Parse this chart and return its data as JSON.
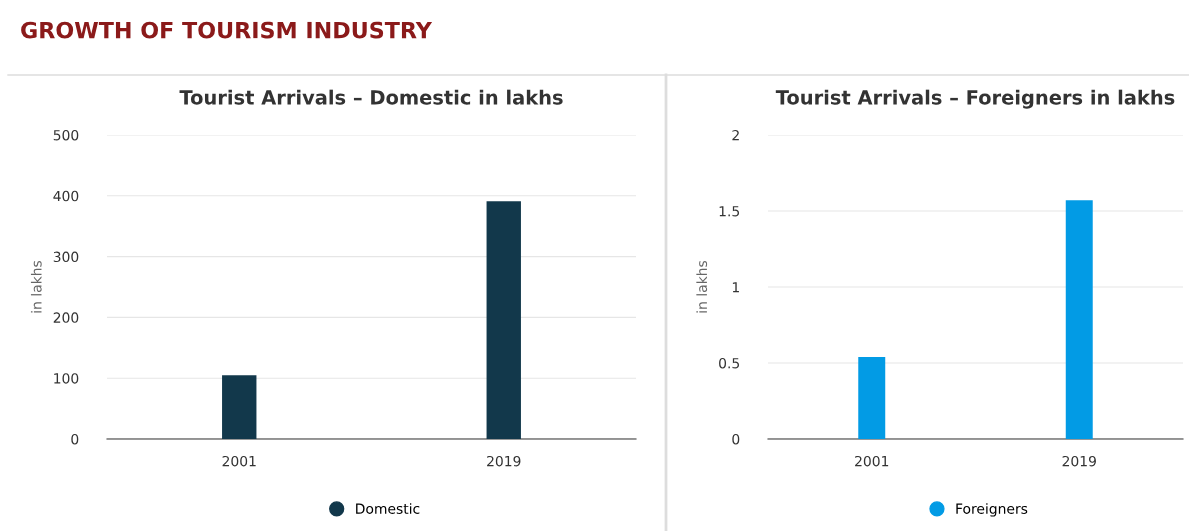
{
  "chart_data": [
    {
      "type": "bar",
      "title": "Tourist Arrivals – Domestic in lakhs",
      "ylabel": "in lakhs",
      "categories": [
        "2001",
        "2019"
      ],
      "series": [
        {
          "name": "Domestic",
          "color": "#12384b",
          "values": [
            105,
            391
          ]
        }
      ],
      "ylim": [
        0,
        500
      ],
      "yticks": [
        0,
        100,
        200,
        300,
        400,
        500
      ],
      "grid": "y",
      "legend": "bottom",
      "annotations": [
        "GROWTH OF TOURISM INDUSTRY"
      ]
    },
    {
      "type": "bar",
      "title": "Tourist Arrivals – Foreigners in lakhs",
      "ylabel": "in lakhs",
      "categories": [
        "2001",
        "2019"
      ],
      "series": [
        {
          "name": "Foreigners",
          "color": "#029be5",
          "values": [
            0.54,
            1.57
          ]
        }
      ],
      "ylim": [
        0,
        2
      ],
      "yticks": [
        0,
        0.5,
        1,
        1.5,
        2
      ],
      "grid": "y",
      "legend": "bottom"
    }
  ]
}
